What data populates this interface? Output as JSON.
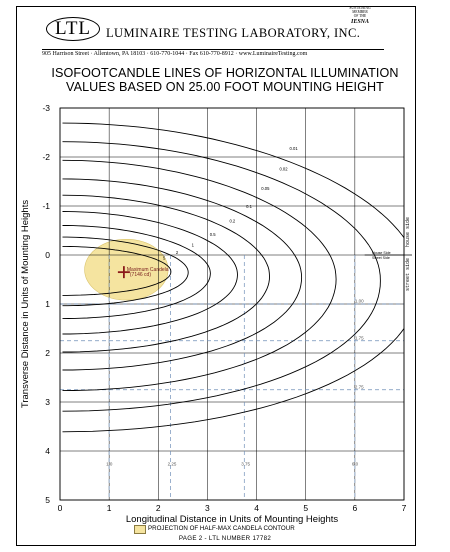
{
  "header": {
    "logo": "LTL",
    "company": "LUMINAIRE TESTING LABORATORY, INC.",
    "member_lines": [
      "SUSTAINING",
      "MEMBER",
      "of the"
    ],
    "member_org": "IESNA",
    "address": "905 Harrison Street · Allentown, PA 18103 · 610-770-1044 · Fax 610-770-8912 · www.LuminaireTesting.com"
  },
  "title": {
    "line1": "ISOFOOTCANDLE LINES OF HORIZONTAL ILLUMINATION",
    "line2": "VALUES BASED ON 25.00 FOOT MOUNTING HEIGHT"
  },
  "legend": {
    "label": "PROJECTION OF HALF-MAX CANDELA CONTOUR",
    "color": "#f5e4a0"
  },
  "footer": {
    "text": "PAGE 2 - LTL NUMBER 17782"
  },
  "colors": {
    "contour": "#000000",
    "projection": "#f5e4a0",
    "marker": "#8b1a1a",
    "dashed": "#6f8fb8"
  },
  "chart_data": {
    "type": "contour",
    "xlabel": "Longitudinal Distance in Units of Mounting Heights",
    "ylabel": "Transverse Distance in Units of Mounting Heights",
    "xlim": [
      0,
      7
    ],
    "ylim": [
      -3,
      5
    ],
    "y_inverted": true,
    "x_ticks": [
      "0",
      "1",
      "2",
      "3",
      "4",
      "5",
      "6",
      "7"
    ],
    "y_ticks": [
      "-3",
      "-2",
      "-1",
      "0",
      "1",
      "2",
      "3",
      "4",
      "5"
    ],
    "grid": true,
    "max_candela": {
      "x": 1.3,
      "y": 0.35,
      "label_line1": "Maximum Candela",
      "label_line2": "(7146 cd)"
    },
    "projection_ellipse": {
      "cx": 1.35,
      "cy": 0.3,
      "rx": 0.85,
      "ry": 0.62
    },
    "house_street": {
      "y": 0,
      "house_label": "House Side",
      "street_label": "Street Side",
      "side_house": "house side",
      "side_street": "street side"
    },
    "dashed_rows": [
      {
        "y": 1.0,
        "label": "1.00"
      },
      {
        "y": 1.75,
        "label": "1.75"
      },
      {
        "y": 2.75,
        "label": "2.75"
      }
    ],
    "dashed_cols": [
      {
        "x": 1.0,
        "label": "1.0"
      },
      {
        "x": 2.25,
        "label": "2.25"
      },
      {
        "x": 3.75,
        "label": "3.75"
      },
      {
        "x": 6.0,
        "label": "6.0"
      }
    ],
    "contours": [
      {
        "value": "0.01",
        "a": 6.0,
        "b": 3.15,
        "x0": 1.3,
        "y0": 0.3
      },
      {
        "value": "0.02",
        "a": 5.2,
        "b": 2.75,
        "x0": 1.3,
        "y0": 0.3
      },
      {
        "value": "0.05",
        "a": 4.3,
        "b": 2.35,
        "x0": 1.3,
        "y0": 0.3
      },
      {
        "value": "0.1",
        "a": 3.6,
        "b": 1.95,
        "x0": 1.3,
        "y0": 0.3
      },
      {
        "value": "0.2",
        "a": 2.95,
        "b": 1.6,
        "x0": 1.3,
        "y0": 0.3
      },
      {
        "value": "0.5",
        "a": 2.3,
        "b": 1.25,
        "x0": 1.3,
        "y0": 0.3
      },
      {
        "value": "1",
        "a": 1.75,
        "b": 0.95,
        "x0": 1.3,
        "y0": 0.3
      },
      {
        "value": "2",
        "a": 1.3,
        "b": 0.7,
        "x0": 1.3,
        "y0": 0.3
      },
      {
        "value": "5",
        "a": 0.95,
        "b": 0.5,
        "x0": 1.3,
        "y0": 0.3
      }
    ]
  }
}
